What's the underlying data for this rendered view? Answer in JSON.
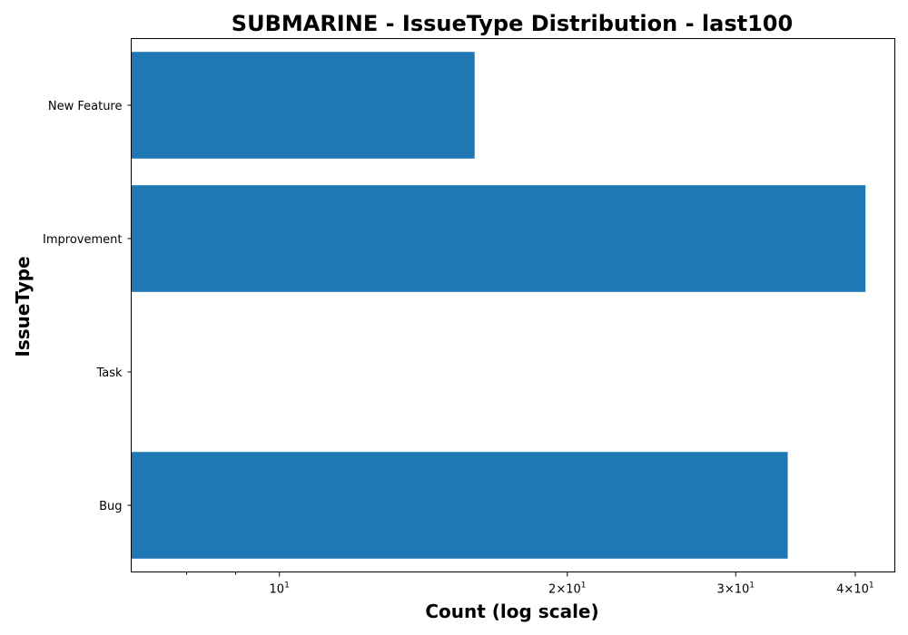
{
  "chart_data": {
    "type": "bar",
    "orientation": "horizontal",
    "title": "SUBMARINE - IssueType Distribution - last100",
    "xlabel": "Count (log scale)",
    "ylabel": "IssueType",
    "x_scale": "log",
    "xlim": [
      7,
      44
    ],
    "categories": [
      "New Feature",
      "Improvement",
      "Task",
      "Bug"
    ],
    "values": [
      16,
      41,
      7,
      34
    ],
    "bar_color": "#1f77b4",
    "grid": false,
    "x_major_ticks": [
      {
        "value": 10,
        "base": "10",
        "exp": "1"
      },
      {
        "value": 20,
        "base": "2×10",
        "exp": "1"
      },
      {
        "value": 30,
        "base": "3×10",
        "exp": "1"
      },
      {
        "value": 40,
        "base": "4×10",
        "exp": "1"
      }
    ],
    "x_minor_ticks": [
      8,
      9
    ]
  }
}
